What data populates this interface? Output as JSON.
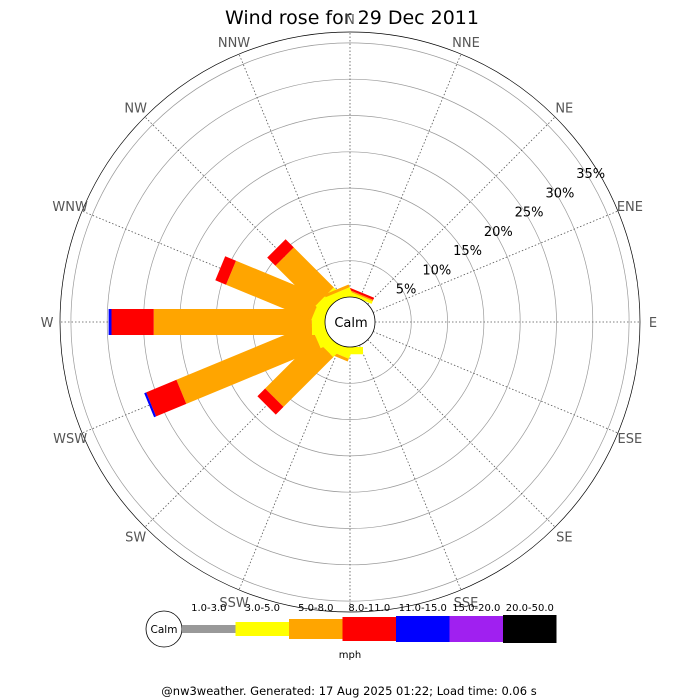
{
  "chart_data": {
    "type": "windrose",
    "title": "Wind rose for 29 Dec 2011",
    "directions": [
      "N",
      "NNE",
      "NE",
      "ENE",
      "E",
      "ESE",
      "SE",
      "SSE",
      "S",
      "SSW",
      "SW",
      "WSW",
      "W",
      "WNW",
      "NW",
      "NNW"
    ],
    "radial_ticks": [
      "5%",
      "10%",
      "15%",
      "20%",
      "25%",
      "30%",
      "35%"
    ],
    "radial_values": [
      5,
      10,
      15,
      20,
      25,
      30,
      35
    ],
    "rmax_percent": 36.5,
    "center_label": "Calm",
    "units": "mph",
    "bins": [
      {
        "label": "1.0-3.0",
        "color": "#999999"
      },
      {
        "label": "3.0-5.0",
        "color": "#ffff00"
      },
      {
        "label": "5.0-8.0",
        "color": "#ffa500"
      },
      {
        "label": "8.0-11.0",
        "color": "#ff0000"
      },
      {
        "label": "11.0-15.0",
        "color": "#0000ff"
      },
      {
        "label": "15.0-20.0",
        "color": "#a020f0"
      },
      {
        "label": "20.0-50.0",
        "color": "#000000"
      }
    ],
    "series": [
      {
        "direction": "N",
        "values": [
          0,
          0.4,
          0,
          0,
          0,
          0,
          0
        ]
      },
      {
        "direction": "NNE",
        "values": [
          0,
          0.4,
          0.2,
          0.3,
          0,
          0,
          0
        ]
      },
      {
        "direction": "NE",
        "values": [
          0,
          0,
          0,
          0,
          0,
          0,
          0
        ]
      },
      {
        "direction": "ENE",
        "values": [
          0,
          0,
          0,
          0,
          0,
          0,
          0
        ]
      },
      {
        "direction": "E",
        "values": [
          0,
          0,
          0,
          0,
          0,
          0,
          0
        ]
      },
      {
        "direction": "ESE",
        "values": [
          0,
          0,
          0,
          0,
          0,
          0,
          0
        ]
      },
      {
        "direction": "SE",
        "values": [
          0,
          0,
          0,
          0,
          0,
          0,
          0
        ]
      },
      {
        "direction": "SSE",
        "values": [
          0,
          0,
          0,
          0,
          0,
          0,
          0
        ]
      },
      {
        "direction": "S",
        "values": [
          0,
          1.0,
          0,
          0,
          0,
          0,
          0
        ]
      },
      {
        "direction": "SSW",
        "values": [
          0,
          1.3,
          0.4,
          0,
          0,
          0,
          0
        ]
      },
      {
        "direction": "SW",
        "values": [
          0,
          1.6,
          9.7,
          1.5,
          0,
          0,
          0
        ]
      },
      {
        "direction": "WSW",
        "values": [
          0,
          1.7,
          20.0,
          4.5,
          0.3,
          0,
          0
        ]
      },
      {
        "direction": "W",
        "values": [
          0,
          1.8,
          21.8,
          5.8,
          0.4,
          0,
          0
        ]
      },
      {
        "direction": "WNW",
        "values": [
          0,
          1.6,
          12.7,
          1.6,
          0,
          0,
          0
        ]
      },
      {
        "direction": "NW",
        "values": [
          0,
          1.5,
          7.8,
          1.6,
          0,
          0,
          0
        ]
      },
      {
        "direction": "NNW",
        "values": [
          0,
          1.0,
          0.4,
          0,
          0,
          0,
          0
        ]
      }
    ]
  },
  "footer": "@nw3weather. Generated: 17 Aug 2025 01:22; Load time: 0.06 s"
}
